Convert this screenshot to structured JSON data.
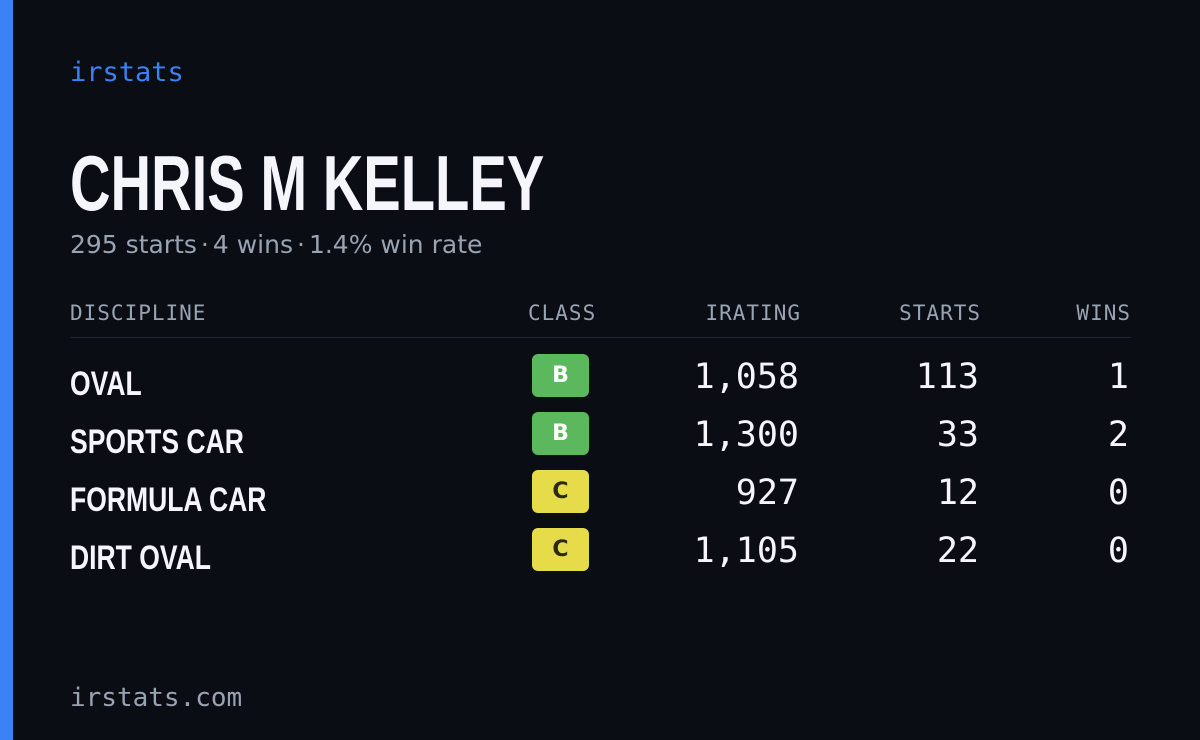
{
  "brand": "irstats",
  "driver": {
    "name": "CHRIS M KELLEY",
    "summary": {
      "starts": "295 starts",
      "wins": "4 wins",
      "win_rate": "1.4% win rate",
      "separator": "·"
    }
  },
  "table": {
    "headers": {
      "discipline": "DISCIPLINE",
      "class": "CLASS",
      "irating": "IRATING",
      "starts": "STARTS",
      "wins": "WINS"
    },
    "rows": [
      {
        "discipline": "OVAL",
        "class": "B",
        "irating": "1,058",
        "starts": "113",
        "wins": "1"
      },
      {
        "discipline": "SPORTS CAR",
        "class": "B",
        "irating": "1,300",
        "starts": "33",
        "wins": "2"
      },
      {
        "discipline": "FORMULA CAR",
        "class": "C",
        "irating": "927",
        "starts": "12",
        "wins": "0"
      },
      {
        "discipline": "DIRT OVAL",
        "class": "C",
        "irating": "1,105",
        "starts": "22",
        "wins": "0"
      }
    ]
  },
  "footer": "irstats.com",
  "colors": {
    "background": "#0a0d14",
    "accent": "#3b82f6",
    "class_b": "#5cb85c",
    "class_c": "#e6dc4a",
    "muted_text": "#9aa3b2",
    "primary_text": "#f4f6fb"
  }
}
